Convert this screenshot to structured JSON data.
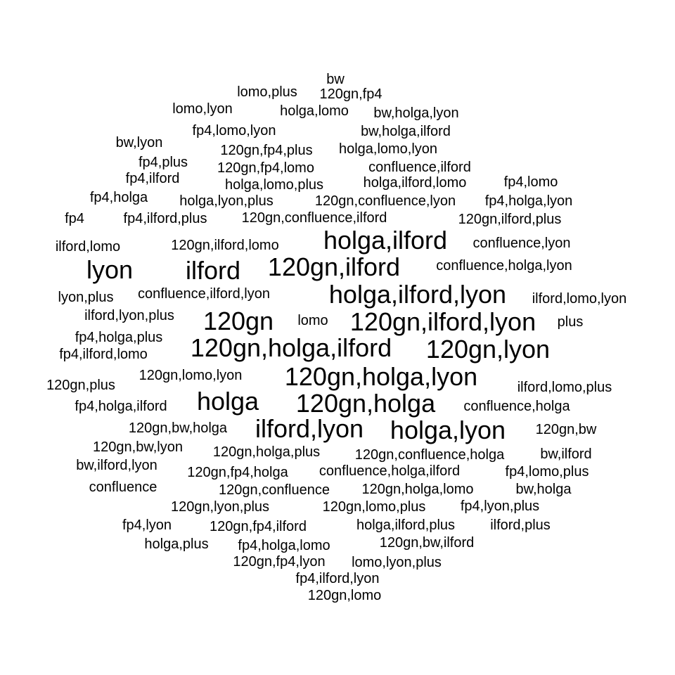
{
  "words": [
    "bw",
    "120gn,fp4",
    "lomo,plus",
    "lomo,lyon",
    "holga,lomo",
    "bw,holga,lyon",
    "fp4,lomo,lyon",
    "bw,holga,ilford",
    "bw,lyon",
    "120gn,fp4,plus",
    "holga,lomo,lyon",
    "fp4,plus",
    "120gn,fp4,lomo",
    "confluence,ilford",
    "fp4,ilford",
    "holga,lomo,plus",
    "holga,ilford,lomo",
    "fp4,lomo",
    "fp4,holga",
    "holga,lyon,plus",
    "120gn,confluence,lyon",
    "fp4,holga,lyon",
    "fp4",
    "fp4,ilford,plus",
    "120gn,confluence,ilford",
    "120gn,ilford,plus",
    "holga,ilford",
    "ilford,lomo",
    "120gn,ilford,lomo",
    "confluence,lyon",
    "lyon",
    "ilford",
    "120gn,ilford",
    "confluence,holga,lyon",
    "holga,ilford,lyon",
    "lyon,plus",
    "confluence,ilford,lyon",
    "ilford,lomo,lyon",
    "120gn",
    "ilford,lyon,plus",
    "lomo",
    "120gn,ilford,lyon",
    "plus",
    "fp4,holga,plus",
    "120gn,holga,ilford",
    "120gn,lyon",
    "fp4,ilford,lomo",
    "120gn,holga,lyon",
    "120gn,lomo,lyon",
    "120gn,plus",
    "ilford,lomo,plus",
    "holga",
    "120gn,holga",
    "fp4,holga,ilford",
    "confluence,holga",
    "ilford,lyon",
    "holga,lyon",
    "120gn,bw,holga",
    "120gn,bw",
    "120gn,bw,lyon",
    "120gn,holga,plus",
    "120gn,confluence,holga",
    "bw,ilford",
    "bw,ilford,lyon",
    "120gn,fp4,holga",
    "confluence,holga,ilford",
    "fp4,lomo,plus",
    "confluence",
    "120gn,confluence",
    "120gn,holga,lomo",
    "bw,holga",
    "120gn,lyon,plus",
    "120gn,lomo,plus",
    "fp4,lyon,plus",
    "fp4,lyon",
    "120gn,fp4,ilford",
    "holga,ilford,plus",
    "ilford,plus",
    "holga,plus",
    "fp4,holga,lomo",
    "120gn,bw,ilford",
    "120gn,fp4,lyon",
    "lomo,lyon,plus",
    "fp4,ilford,lyon",
    "120gn,lomo"
  ]
}
